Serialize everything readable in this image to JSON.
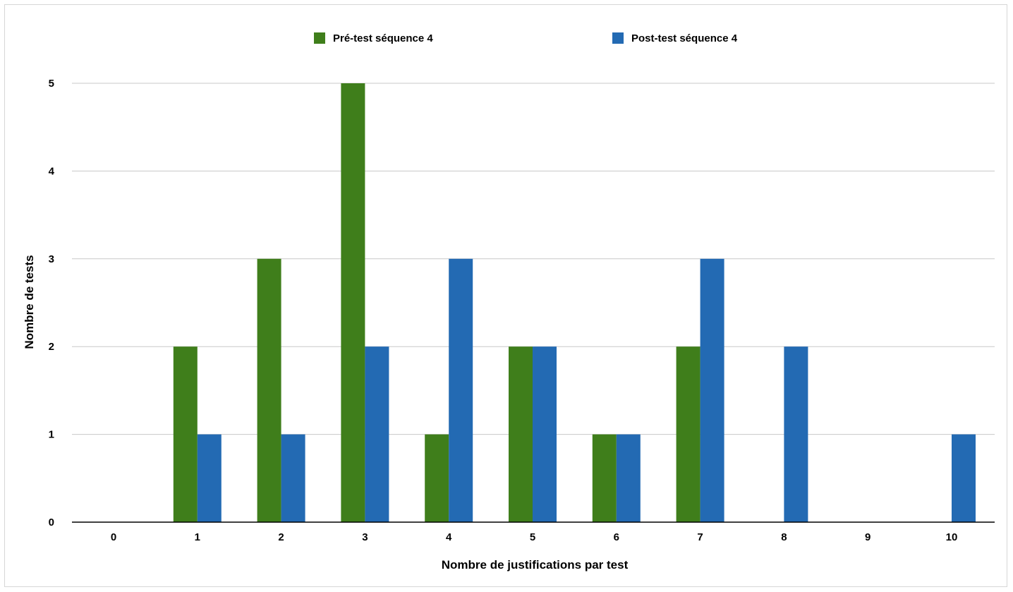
{
  "chart_data": {
    "type": "bar",
    "title": "",
    "xlabel": "Nombre de justifications par test",
    "ylabel": "Nombre de tests",
    "categories": [
      "0",
      "1",
      "2",
      "3",
      "4",
      "5",
      "6",
      "7",
      "8",
      "9",
      "10"
    ],
    "ylim": [
      0,
      5
    ],
    "yticks": [
      "0",
      "1",
      "2",
      "3",
      "4",
      "5"
    ],
    "grid": true,
    "legend_position": "top",
    "series": [
      {
        "name": "Pré-test séquence 4",
        "color": "#3f7e1b",
        "values": [
          0,
          2,
          3,
          5,
          1,
          2,
          1,
          2,
          0,
          0,
          0
        ]
      },
      {
        "name": "Post-test séquence 4",
        "color": "#236ab3",
        "values": [
          0,
          1,
          1,
          2,
          3,
          2,
          1,
          3,
          2,
          0,
          1
        ]
      }
    ]
  }
}
